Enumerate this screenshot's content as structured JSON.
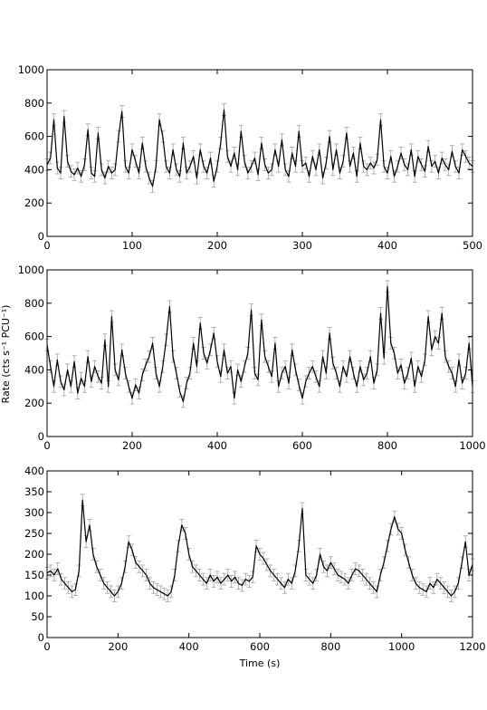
{
  "figure": {
    "ylabel": "Rate (cts s⁻¹ PCU⁻¹)",
    "xlabel": "Time (s)"
  },
  "chart_data": [
    {
      "type": "line",
      "xlim": [
        0,
        500
      ],
      "ylim": [
        0,
        1000
      ],
      "xticks": [
        "0",
        "100",
        "200",
        "300",
        "400",
        "500"
      ],
      "yticks": [
        "0",
        "200",
        "400",
        "600",
        "800",
        "1000"
      ],
      "error_bars": true,
      "x": [
        0,
        4,
        8,
        12,
        16,
        20,
        24,
        28,
        32,
        36,
        40,
        44,
        48,
        52,
        56,
        60,
        64,
        68,
        72,
        76,
        80,
        84,
        88,
        92,
        96,
        100,
        104,
        108,
        112,
        116,
        120,
        124,
        128,
        132,
        136,
        140,
        144,
        148,
        152,
        156,
        160,
        164,
        168,
        172,
        176,
        180,
        184,
        188,
        192,
        196,
        200,
        204,
        208,
        212,
        216,
        220,
        224,
        228,
        232,
        236,
        240,
        244,
        248,
        252,
        256,
        260,
        264,
        268,
        272,
        276,
        280,
        284,
        288,
        292,
        296,
        300,
        304,
        308,
        312,
        316,
        320,
        324,
        328,
        332,
        336,
        340,
        344,
        348,
        352,
        356,
        360,
        364,
        368,
        372,
        376,
        380,
        384,
        388,
        392,
        396,
        400,
        404,
        408,
        412,
        416,
        420,
        424,
        428,
        432,
        436,
        440,
        444,
        448,
        452,
        456,
        460,
        464,
        468,
        472,
        476,
        480,
        484,
        488,
        492,
        496,
        500
      ],
      "y": [
        430,
        470,
        700,
        410,
        380,
        720,
        450,
        390,
        370,
        410,
        360,
        430,
        640,
        380,
        360,
        620,
        400,
        350,
        420,
        380,
        400,
        600,
        750,
        420,
        380,
        520,
        450,
        380,
        560,
        420,
        350,
        300,
        420,
        700,
        600,
        420,
        380,
        520,
        400,
        360,
        560,
        380,
        420,
        480,
        350,
        520,
        420,
        380,
        470,
        330,
        420,
        560,
        760,
        480,
        420,
        500,
        400,
        630,
        450,
        380,
        420,
        470,
        370,
        560,
        430,
        380,
        400,
        520,
        420,
        580,
        400,
        360,
        500,
        420,
        630,
        420,
        440,
        360,
        480,
        400,
        520,
        350,
        440,
        600,
        400,
        520,
        380,
        450,
        620,
        420,
        500,
        360,
        560,
        420,
        400,
        440,
        410,
        460,
        700,
        420,
        380,
        480,
        360,
        420,
        500,
        430,
        400,
        520,
        360,
        480,
        430,
        390,
        540,
        420,
        450,
        380,
        470,
        430,
        400,
        510,
        420,
        380,
        520,
        480,
        440,
        420
      ]
    },
    {
      "type": "line",
      "xlim": [
        0,
        1000
      ],
      "ylim": [
        0,
        1000
      ],
      "xticks": [
        "0",
        "200",
        "400",
        "600",
        "800",
        "1000"
      ],
      "yticks": [
        "0",
        "200",
        "400",
        "600",
        "800",
        "1000"
      ],
      "error_bars": true,
      "x": [
        0,
        8,
        16,
        24,
        32,
        40,
        48,
        56,
        64,
        72,
        80,
        88,
        96,
        104,
        112,
        120,
        128,
        136,
        144,
        152,
        160,
        168,
        176,
        184,
        192,
        200,
        208,
        216,
        224,
        232,
        240,
        248,
        256,
        264,
        272,
        280,
        288,
        296,
        304,
        312,
        320,
        328,
        336,
        344,
        352,
        360,
        368,
        376,
        384,
        392,
        400,
        408,
        416,
        424,
        432,
        440,
        448,
        456,
        464,
        472,
        480,
        488,
        496,
        504,
        512,
        520,
        528,
        536,
        544,
        552,
        560,
        568,
        576,
        584,
        592,
        600,
        608,
        616,
        624,
        632,
        640,
        648,
        656,
        664,
        672,
        680,
        688,
        696,
        704,
        712,
        720,
        728,
        736,
        744,
        752,
        760,
        768,
        776,
        784,
        792,
        800,
        808,
        816,
        824,
        832,
        840,
        848,
        856,
        864,
        872,
        880,
        888,
        896,
        904,
        912,
        920,
        928,
        936,
        944,
        952,
        960,
        968,
        976,
        984,
        992,
        1000
      ],
      "y": [
        550,
        420,
        300,
        460,
        330,
        280,
        400,
        300,
        450,
        260,
        350,
        300,
        480,
        330,
        420,
        360,
        320,
        580,
        300,
        720,
        400,
        340,
        520,
        380,
        300,
        230,
        310,
        260,
        370,
        430,
        480,
        560,
        380,
        300,
        420,
        580,
        780,
        480,
        380,
        270,
        210,
        320,
        380,
        560,
        420,
        680,
        500,
        440,
        520,
        620,
        450,
        360,
        520,
        380,
        420,
        230,
        400,
        330,
        420,
        500,
        760,
        380,
        340,
        700,
        480,
        420,
        360,
        560,
        300,
        380,
        420,
        320,
        520,
        400,
        310,
        230,
        330,
        380,
        420,
        360,
        300,
        480,
        380,
        620,
        440,
        380,
        300,
        420,
        360,
        480,
        380,
        300,
        420,
        340,
        380,
        480,
        320,
        400,
        740,
        470,
        900,
        560,
        500,
        380,
        430,
        320,
        380,
        470,
        300,
        420,
        360,
        460,
        720,
        520,
        600,
        560,
        740,
        480,
        420,
        380,
        300,
        460,
        320,
        380,
        560,
        300
      ]
    },
    {
      "type": "line",
      "xlim": [
        0,
        1200
      ],
      "ylim": [
        0,
        400
      ],
      "xticks": [
        "0",
        "200",
        "400",
        "600",
        "800",
        "1000",
        "1200"
      ],
      "yticks": [
        "0",
        "50",
        "100",
        "150",
        "200",
        "250",
        "300",
        "350",
        "400"
      ],
      "error_bars": true,
      "x": [
        0,
        10,
        20,
        30,
        40,
        50,
        60,
        70,
        80,
        90,
        100,
        110,
        120,
        130,
        140,
        150,
        160,
        170,
        180,
        190,
        200,
        210,
        220,
        230,
        240,
        250,
        260,
        270,
        280,
        290,
        300,
        310,
        320,
        330,
        340,
        350,
        360,
        370,
        380,
        390,
        400,
        410,
        420,
        430,
        440,
        450,
        460,
        470,
        480,
        490,
        500,
        510,
        520,
        530,
        540,
        550,
        560,
        570,
        580,
        590,
        600,
        610,
        620,
        630,
        640,
        650,
        660,
        670,
        680,
        690,
        700,
        710,
        720,
        730,
        740,
        750,
        760,
        770,
        780,
        790,
        800,
        810,
        820,
        830,
        840,
        850,
        860,
        870,
        880,
        890,
        900,
        910,
        920,
        930,
        940,
        950,
        960,
        970,
        980,
        990,
        1000,
        1010,
        1020,
        1030,
        1040,
        1050,
        1060,
        1070,
        1080,
        1090,
        1100,
        1110,
        1120,
        1130,
        1140,
        1150,
        1160,
        1170,
        1180,
        1190,
        1200
      ],
      "y": [
        155,
        160,
        150,
        165,
        140,
        130,
        120,
        110,
        115,
        160,
        330,
        230,
        270,
        200,
        170,
        150,
        130,
        120,
        110,
        100,
        110,
        130,
        170,
        230,
        210,
        180,
        170,
        160,
        150,
        130,
        120,
        115,
        110,
        105,
        100,
        110,
        150,
        220,
        270,
        250,
        200,
        170,
        160,
        150,
        140,
        130,
        150,
        135,
        145,
        130,
        140,
        150,
        135,
        145,
        130,
        125,
        140,
        135,
        145,
        220,
        200,
        190,
        175,
        160,
        150,
        140,
        130,
        120,
        140,
        130,
        160,
        220,
        310,
        150,
        140,
        130,
        150,
        200,
        170,
        160,
        180,
        165,
        150,
        145,
        140,
        130,
        150,
        165,
        160,
        150,
        140,
        130,
        120,
        110,
        150,
        180,
        220,
        260,
        290,
        260,
        250,
        210,
        180,
        150,
        130,
        120,
        115,
        110,
        130,
        120,
        140,
        130,
        120,
        110,
        100,
        110,
        130,
        180,
        230,
        150,
        175
      ]
    }
  ]
}
